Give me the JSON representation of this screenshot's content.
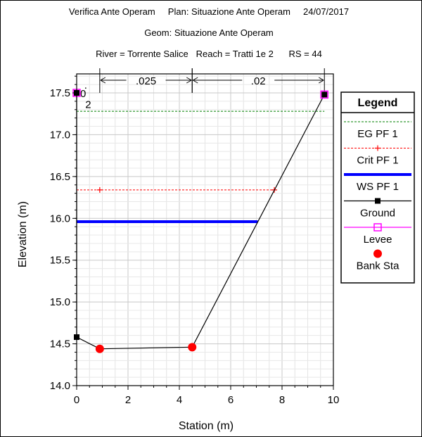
{
  "header": {
    "line1": "Verifica Ante Operam     Plan: Situazione Ante Operam     24/07/2017",
    "line2": "Geom: Situazione Ante Operam",
    "line3": "River = Torrente Salice   Reach = Tratti 1e 2      RS = 44"
  },
  "chart_data": {
    "type": "line",
    "xlabel": "Station (m)",
    "ylabel": "Elevation (m)",
    "xlim": [
      0,
      10
    ],
    "ylim": [
      14.0,
      17.5
    ],
    "x_ticks": [
      "0",
      "2",
      "4",
      "6",
      "8",
      "10"
    ],
    "y_ticks": [
      "14.0",
      "14.5",
      "15.0",
      "15.5",
      "16.0",
      "16.5",
      "17.0",
      "17.5"
    ],
    "grid": true,
    "legend_title": "Legend",
    "legend_position": "right",
    "series": [
      {
        "name": "EG PF 1",
        "color": "#008000",
        "style": "dashed",
        "x": [
          0.0,
          9.65
        ],
        "y": [
          17.28,
          17.28
        ]
      },
      {
        "name": "Crit PF 1",
        "color": "#ff0000",
        "style": "dashed-plus",
        "x": [
          0.0,
          0.9,
          7.7,
          7.72
        ],
        "y": [
          16.34,
          16.34,
          16.34,
          16.34
        ],
        "markers_x": [
          0.9,
          7.7
        ]
      },
      {
        "name": "WS PF 1",
        "color": "#0000ff",
        "style": "thick",
        "x": [
          0.0,
          7.05
        ],
        "y": [
          15.96,
          15.96
        ]
      },
      {
        "name": "Ground",
        "color": "#000000",
        "style": "line-square",
        "x": [
          0.0,
          0.0,
          0.9,
          4.5,
          9.65
        ],
        "y": [
          17.5,
          14.58,
          14.44,
          14.46,
          17.48
        ],
        "markers_x": [
          0.0,
          0.0,
          9.65
        ],
        "markers_y": [
          17.5,
          14.58,
          17.48
        ]
      },
      {
        "name": "Levee",
        "color": "#ff00ff",
        "style": "open-square",
        "x": [
          0.0,
          9.65
        ],
        "y": [
          17.5,
          17.48
        ]
      },
      {
        "name": "Bank Sta",
        "color": "#ff0000",
        "style": "dot",
        "x": [
          0.9,
          4.5
        ],
        "y": [
          14.44,
          14.46
        ]
      }
    ],
    "annotations": [
      {
        "text": ".025",
        "x_from": 0.9,
        "x_to": 4.5
      },
      {
        "text": ".02",
        "x_from": 4.5,
        "x_to": 9.65
      },
      {
        "text": "0",
        "x": 0.25,
        "y": 17.5
      },
      {
        "text": "2",
        "x": 0.45,
        "y": 17.37
      },
      {
        "text": ".",
        "x": 0.35,
        "y": 17.6
      }
    ]
  }
}
